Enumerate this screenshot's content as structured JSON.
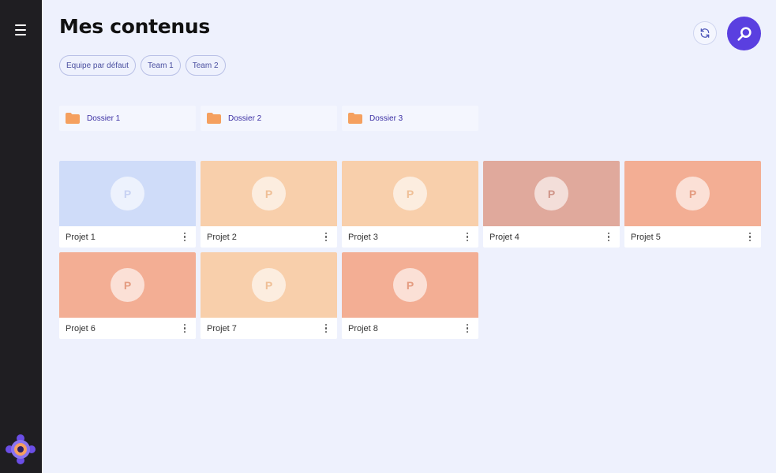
{
  "sidebar": {
    "menu_icon": "hamburger-icon",
    "logo_icon": "app-logo-icon"
  },
  "header": {
    "title": "Mes contenus",
    "refresh_icon": "refresh-icon",
    "search_icon": "search-icon",
    "accent_color": "#5a3fe0"
  },
  "teams": [
    {
      "label": "Equipe par défaut"
    },
    {
      "label": "Team 1"
    },
    {
      "label": "Team 2"
    }
  ],
  "folders": [
    {
      "label": "Dossier 1",
      "icon": "folder-icon"
    },
    {
      "label": "Dossier 2",
      "icon": "folder-icon"
    },
    {
      "label": "Dossier 3",
      "icon": "folder-icon"
    }
  ],
  "folder_color": "#f5a05f",
  "projects": [
    {
      "title": "Projet 1",
      "initial": "P",
      "color": "#cfdcf9",
      "initial_color": "#c7d2f3"
    },
    {
      "title": "Projet 2",
      "initial": "P",
      "color": "#f8cfab",
      "initial_color": "#efbf96"
    },
    {
      "title": "Projet 3",
      "initial": "P",
      "color": "#f8cfab",
      "initial_color": "#efbf96"
    },
    {
      "title": "Projet 4",
      "initial": "P",
      "color": "#e0a99c",
      "initial_color": "#cf9488"
    },
    {
      "title": "Projet 5",
      "initial": "P",
      "color": "#f3ae94",
      "initial_color": "#e49b80"
    },
    {
      "title": "Projet 6",
      "initial": "P",
      "color": "#f3ae94",
      "initial_color": "#e49b80"
    },
    {
      "title": "Projet 7",
      "initial": "P",
      "color": "#f8cfab",
      "initial_color": "#efbf96"
    },
    {
      "title": "Projet 8",
      "initial": "P",
      "color": "#f3ae94",
      "initial_color": "#e49b80"
    }
  ],
  "card_menu_icon": "more-vertical-icon"
}
